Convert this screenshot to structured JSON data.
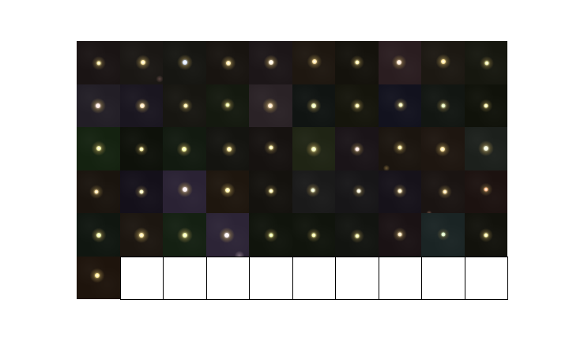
{
  "grid": {
    "rows": 6,
    "cols": 10,
    "cutouts": [
      {
        "bg": "#1a1414",
        "star": "#f5e79a",
        "brightness": 0.75
      },
      {
        "bg": "#1a1714",
        "star": "#fde9a0",
        "brightness": 0.9,
        "artifact": "#5a4540"
      },
      {
        "bg": "#161612",
        "star": "#dbe8ff",
        "brightness": 0.95
      },
      {
        "bg": "#181410",
        "star": "#ffe9a6",
        "brightness": 0.9
      },
      {
        "bg": "#1c1618",
        "star": "#fff1d8",
        "brightness": 0.9
      },
      {
        "bg": "#1e1710",
        "star": "#ffe2a0",
        "brightness": 0.85
      },
      {
        "bg": "#14120c",
        "star": "#fff2aa",
        "brightness": 0.75
      },
      {
        "bg": "#2a1d20",
        "star": "#ffe6cf",
        "brightness": 0.85
      },
      {
        "bg": "#1c1812",
        "star": "#ffe496",
        "brightness": 0.9
      },
      {
        "bg": "#16170f",
        "star": "#f4f3a8",
        "brightness": 0.75
      },
      {
        "bg": "#221e26",
        "star": "#ffe9e2",
        "brightness": 0.95
      },
      {
        "bg": "#1a1620",
        "star": "#ffe4b8",
        "brightness": 0.9
      },
      {
        "bg": "#171611",
        "star": "#fff0a5",
        "brightness": 0.75
      },
      {
        "bg": "#14190f",
        "star": "#e9ee9a",
        "brightness": 0.8
      },
      {
        "bg": "#2a2226",
        "star": "#ffe6c0",
        "brightness": 1.0
      },
      {
        "bg": "#101412",
        "star": "#f0f4b0",
        "brightness": 0.85
      },
      {
        "bg": "#15150c",
        "star": "#f7f0a6",
        "brightness": 0.75
      },
      {
        "bg": "#12121e",
        "star": "#f3f3b0",
        "brightness": 0.75
      },
      {
        "bg": "#121612",
        "star": "#e4f0b4",
        "brightness": 0.75
      },
      {
        "bg": "#10120a",
        "star": "#fff7aa",
        "brightness": 0.7
      },
      {
        "bg": "#142210",
        "star": "#f0f0a0",
        "brightness": 0.85
      },
      {
        "bg": "#0e110a",
        "star": "#fff5a4",
        "brightness": 0.7
      },
      {
        "bg": "#121a10",
        "star": "#fbfca0",
        "brightness": 0.9
      },
      {
        "bg": "#141410",
        "star": "#fff0a0",
        "brightness": 0.9
      },
      {
        "bg": "#161210",
        "star": "#fff3a8",
        "brightness": 0.75
      },
      {
        "bg": "#1f2414",
        "star": "#f3f5b0",
        "brightness": 0.95
      },
      {
        "bg": "#1a1418",
        "star": "#ffe8e0",
        "brightness": 0.8
      },
      {
        "bg": "#1b150f",
        "star": "#ffefa4",
        "brightness": 0.8,
        "artifact": "#6e5a36"
      },
      {
        "bg": "#1e1610",
        "star": "#ffe6a0",
        "brightness": 0.85
      },
      {
        "bg": "#1c201c",
        "star": "#f2f4d6",
        "brightness": 0.95
      },
      {
        "bg": "#1a140e",
        "star": "#ffe4a4",
        "brightness": 0.75
      },
      {
        "bg": "#14101a",
        "star": "#f6f3b8",
        "brightness": 0.7
      },
      {
        "bg": "#2a2234",
        "star": "#fff0f2",
        "brightness": 1.0
      },
      {
        "bg": "#1e160e",
        "star": "#fff4a8",
        "brightness": 0.9
      },
      {
        "bg": "#14120e",
        "star": "#fff6ae",
        "brightness": 0.7
      },
      {
        "bg": "#1a1a1a",
        "star": "#ecf1c6",
        "brightness": 0.8
      },
      {
        "bg": "#171618",
        "star": "#f2eed4",
        "brightness": 0.7
      },
      {
        "bg": "#16121a",
        "star": "#fff0c2",
        "brightness": 0.75
      },
      {
        "bg": "#1a1412",
        "star": "#ffe4a4",
        "brightness": 0.75,
        "artifact": "#6a4f42"
      },
      {
        "bg": "#1c1210",
        "star": "#ffb880",
        "brightness": 0.65
      },
      {
        "bg": "#101610",
        "star": "#f0f8a8",
        "brightness": 0.85
      },
      {
        "bg": "#1c1610",
        "star": "#ffeca4",
        "brightness": 0.95
      },
      {
        "bg": "#142012",
        "star": "#f6f8aa",
        "brightness": 0.95
      },
      {
        "bg": "#2c2436",
        "star": "#fff4f6",
        "brightness": 1.0,
        "artifact": "#7a6a78"
      },
      {
        "bg": "#10140c",
        "star": "#eef8a0",
        "brightness": 0.75
      },
      {
        "bg": "#10140c",
        "star": "#f8f8a4",
        "brightness": 0.75
      },
      {
        "bg": "#121410",
        "star": "#f6f6a8",
        "brightness": 0.75
      },
      {
        "bg": "#1a1214",
        "star": "#ffe8ba",
        "brightness": 0.75
      },
      {
        "bg": "#1a2424",
        "star": "#d8f0c0",
        "brightness": 0.6
      },
      {
        "bg": "#12120c",
        "star": "#fff8a8",
        "brightness": 0.75
      },
      {
        "bg": "#1e140c",
        "star": "#ffe890",
        "brightness": 0.85
      },
      {
        "empty": true
      },
      {
        "empty": true
      },
      {
        "empty": true
      },
      {
        "empty": true
      },
      {
        "empty": true
      },
      {
        "empty": true
      },
      {
        "empty": true
      },
      {
        "empty": true
      },
      {
        "empty": true
      }
    ]
  }
}
